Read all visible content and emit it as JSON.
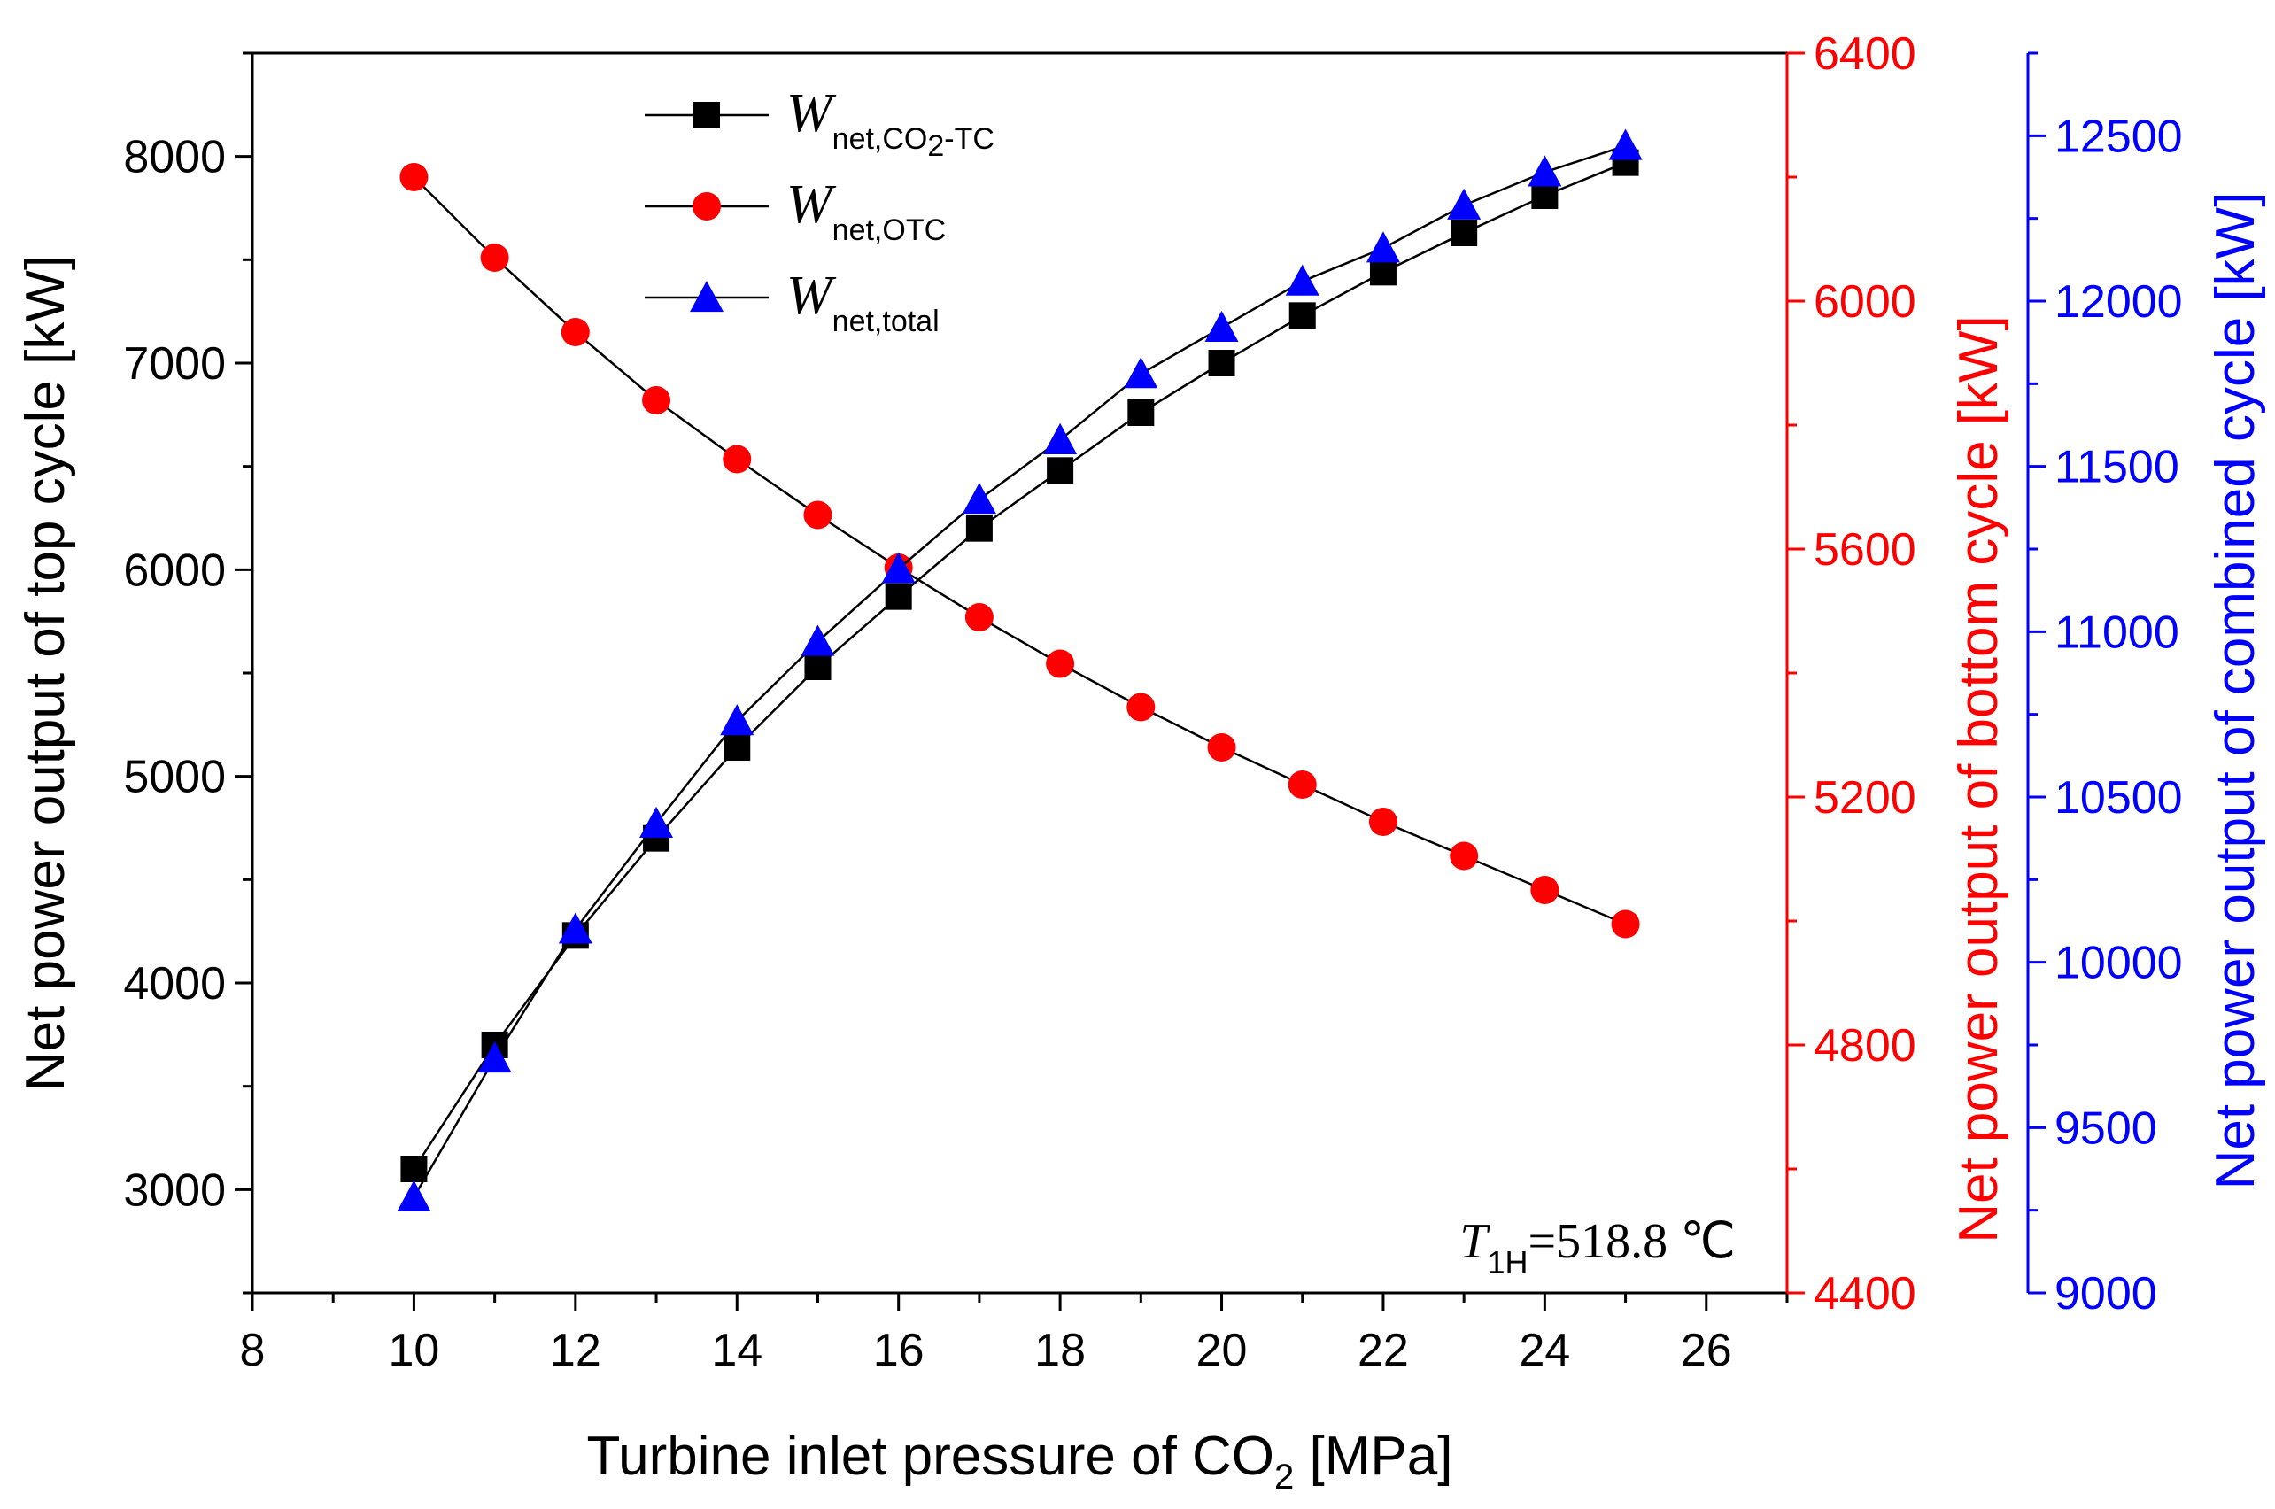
{
  "chart_data": {
    "type": "line",
    "x": [
      10,
      11,
      12,
      13,
      14,
      15,
      16,
      17,
      18,
      19,
      20,
      21,
      22,
      23,
      24,
      25
    ],
    "xlabel": "Turbine inlet pressure of CO",
    "xlabel_sub": "2",
    "xlabel_unit": " [MPa]",
    "xlim": [
      8,
      27
    ],
    "xticks": [
      8,
      10,
      12,
      14,
      16,
      18,
      20,
      22,
      24,
      26
    ],
    "axes": {
      "left": {
        "label": "Net power output of top cycle [kW]",
        "ylim": [
          2500,
          8500
        ],
        "ticks": [
          3000,
          4000,
          5000,
          6000,
          7000,
          8000
        ],
        "color": "#000000"
      },
      "right1": {
        "label": "Net power output of bottom cycle [kW]",
        "ylim": [
          4400,
          6400
        ],
        "ticks": [
          4400,
          4800,
          5200,
          5600,
          6000,
          6400
        ],
        "color": "#ff0000"
      },
      "right2": {
        "label": "Net power output of combined cycle [kW]",
        "ylim": [
          9000,
          12750
        ],
        "ticks": [
          9000,
          9500,
          10000,
          10500,
          11000,
          11500,
          12000,
          12500
        ],
        "color": "#0000ff"
      }
    },
    "series": [
      {
        "name": "W",
        "sub": "net,CO",
        "sub2": "2",
        "sub3": "-TC",
        "axis": "left",
        "marker": "square",
        "color": "#000000",
        "values": [
          3100,
          3700,
          4230,
          4700,
          5140,
          5530,
          5870,
          6200,
          6480,
          6760,
          7000,
          7230,
          7440,
          7630,
          7810,
          7970
        ]
      },
      {
        "name": "W",
        "sub": "net,OTC",
        "axis": "right1",
        "marker": "circle",
        "color": "#ff0000",
        "values": [
          6200,
          6070,
          5950,
          5840,
          5745,
          5655,
          5570,
          5490,
          5415,
          5345,
          5280,
          5220,
          5160,
          5105,
          5050,
          4995
        ]
      },
      {
        "name": "W",
        "sub": "net,total",
        "axis": "right2",
        "marker": "triangle",
        "color": "#0000ff",
        "values": [
          9290,
          9710,
          10100,
          10420,
          10730,
          10970,
          11190,
          11400,
          11580,
          11780,
          11920,
          12060,
          12160,
          12290,
          12390,
          12470
        ]
      }
    ],
    "annotation": {
      "italic": "T",
      "sub": "1H",
      "text": "=518.8 ℃"
    }
  }
}
